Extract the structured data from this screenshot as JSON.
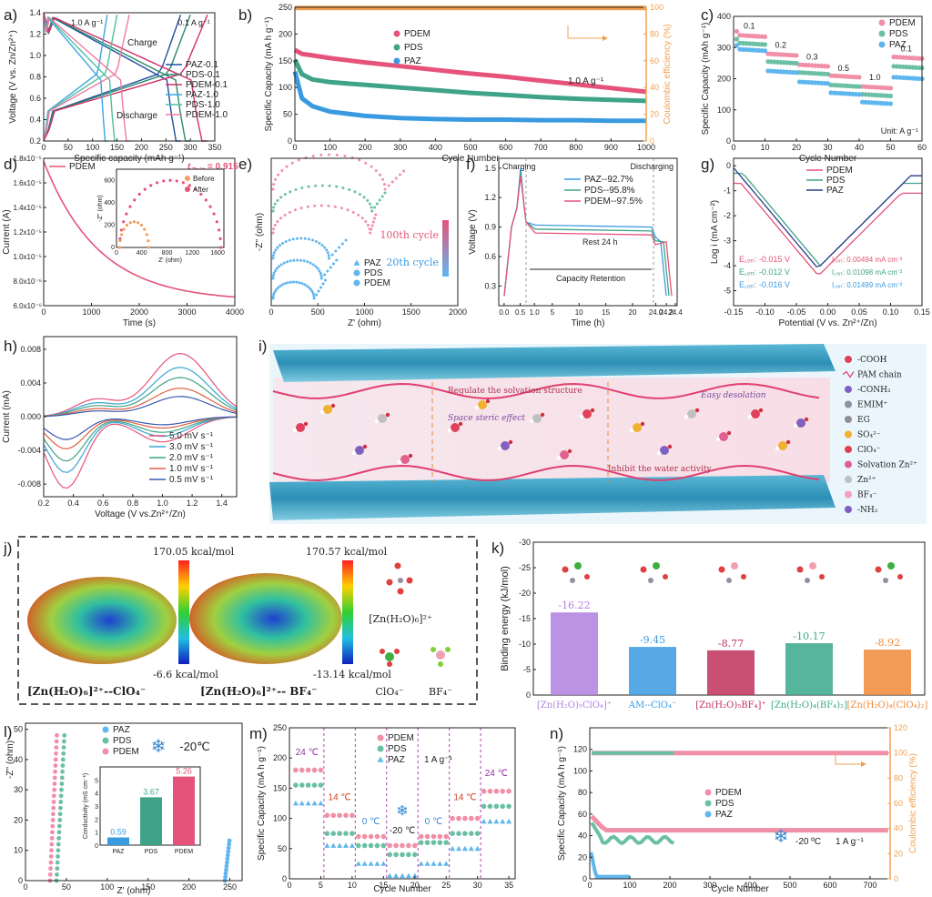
{
  "colors": {
    "PDEM": "#e6537a",
    "PDS": "#3fa387",
    "PAZ": "#3a9ae0",
    "PDEM_light": "#f08fa6",
    "PDS_light": "#6bbfa4",
    "PAZ_light": "#5fb6ef",
    "ce": "#f0a050",
    "box": "#eaf6fb"
  },
  "panels": {
    "a": {
      "label": "a)",
      "xlabel": "Specific capacity (mAh g⁻¹)",
      "ylabel": "Voltage (V vs. Zn/Zn²⁺)",
      "xlim": [
        0,
        350
      ],
      "ylim": [
        0.2,
        1.4
      ],
      "xticks": [
        0,
        50,
        100,
        150,
        200,
        250,
        300,
        350
      ],
      "yticks": [
        0.2,
        0.4,
        0.6,
        0.8,
        1.0,
        1.2,
        1.4
      ],
      "annotations": [
        "1.0 A g⁻¹",
        "0.1 A g⁻¹",
        "Charge",
        "Discharge"
      ],
      "series": [
        {
          "name": "PAZ-0.1",
          "color": "#1f4fa0",
          "cap": 280
        },
        {
          "name": "PDS-0.1",
          "color": "#2a8a6c",
          "cap": 300
        },
        {
          "name": "PDEM-0.1",
          "color": "#d0306a",
          "cap": 335
        },
        {
          "name": "PAZ-1.0",
          "color": "#3aa6e0",
          "cap": 130
        },
        {
          "name": "PDS-1.0",
          "color": "#4fbfa0",
          "cap": 150
        },
        {
          "name": "PDEM-1.0",
          "color": "#f07aa0",
          "cap": 175
        }
      ]
    },
    "b": {
      "label": "b)",
      "xlabel": "Cycle Number",
      "ylabel": "Specific Capacity (mA h g⁻¹)",
      "y2label": "Coulombic efficiency (%)",
      "xlim": [
        0,
        1000
      ],
      "ylim": [
        0,
        250
      ],
      "y2lim": [
        0,
        100
      ],
      "xticks": [
        0,
        100,
        200,
        300,
        400,
        500,
        600,
        700,
        800,
        900,
        1000
      ],
      "yticks": [
        0,
        50,
        100,
        150,
        200,
        250
      ],
      "y2ticks": [
        0,
        20,
        40,
        60,
        80,
        100
      ],
      "annotation": "1.0 A g⁻¹",
      "series": [
        {
          "name": "PDEM",
          "x": [
            0,
            20,
            50,
            100,
            200,
            300,
            400,
            500,
            600,
            700,
            800,
            900,
            1000
          ],
          "y": [
            170,
            163,
            160,
            155,
            147,
            140,
            133,
            126,
            120,
            113,
            106,
            99,
            92
          ]
        },
        {
          "name": "PDS",
          "x": [
            0,
            20,
            50,
            100,
            200,
            300,
            400,
            500,
            600,
            700,
            800,
            900,
            1000
          ],
          "y": [
            152,
            125,
            115,
            110,
            105,
            100,
            95,
            90,
            86,
            82,
            79,
            77,
            75
          ]
        },
        {
          "name": "PAZ",
          "x": [
            0,
            20,
            50,
            100,
            200,
            300,
            400,
            500,
            600,
            700,
            800,
            900,
            1000
          ],
          "y": [
            130,
            80,
            65,
            55,
            47,
            43,
            41,
            40,
            40,
            39,
            39,
            38,
            38
          ]
        }
      ],
      "ce": 99.5
    },
    "c": {
      "label": "c)",
      "xlabel": "Cycle Number",
      "ylabel": "Specific Capacity (mAh g⁻¹)",
      "xlim": [
        0,
        60
      ],
      "ylim": [
        0,
        400
      ],
      "xticks": [
        0,
        10,
        20,
        30,
        40,
        50,
        60
      ],
      "yticks": [
        0,
        100,
        200,
        300,
        400
      ],
      "rates": [
        "0.1",
        "0.2",
        "0.3",
        "0.5",
        "1.0",
        "0.1"
      ],
      "unit": "Unit: A g⁻¹",
      "series": [
        {
          "name": "PDEM",
          "values": [
            340,
            280,
            245,
            210,
            175,
            270
          ]
        },
        {
          "name": "PDS",
          "values": [
            315,
            255,
            220,
            180,
            150,
            240
          ]
        },
        {
          "name": "PAZ",
          "values": [
            295,
            225,
            190,
            155,
            125,
            205
          ]
        }
      ]
    },
    "d": {
      "label": "d)",
      "xlabel": "Time (s)",
      "ylabel": "Current (A)",
      "xlim": [
        0,
        4000
      ],
      "xticks": [
        0,
        1000,
        2000,
        3000,
        4000
      ],
      "ylim": [
        6.0,
        1.8
      ],
      "yticks": [
        "6.0x10⁻⁶",
        "8.0x10⁻⁶",
        "1.0x10⁻⁵",
        "1.2x10⁻⁵",
        "1.4x10⁻⁵",
        "1.6x10⁻⁵",
        "1.8x10⁻⁵"
      ],
      "legend": "PDEM",
      "tzn": "t",
      "tzn_sub": "Zn²⁺",
      "tzn_val": "= 0.915",
      "inset": {
        "xlabel": "Z' (ohm)",
        "ylabel": "-Z'' (ohm)",
        "xticks": [
          0,
          400,
          800,
          1200,
          1600
        ],
        "yticks": [
          0,
          200,
          400,
          600
        ],
        "legend": [
          "Before",
          "After"
        ]
      }
    },
    "e": {
      "label": "e)",
      "xlabel": "Z' (ohm)",
      "ylabel": "-Z'' (ohm)",
      "xticks": [
        0,
        500,
        1000,
        1500,
        2000
      ],
      "legend": [
        "PAZ",
        "PDS",
        "PDEM"
      ],
      "cycle100": "100th cycle",
      "cycle20": "20th cycle"
    },
    "f": {
      "label": "f)",
      "xlabel": "Time (h)",
      "ylabel": "Voltage (V)",
      "xticks": [
        "0.0",
        "0.5",
        "1.0",
        "5",
        "10",
        "15",
        "20",
        "24.0",
        "24.2",
        "24.4"
      ],
      "yticks": [
        0.3,
        0.6,
        0.9,
        1.2,
        1.5
      ],
      "charging": "Charging",
      "discharging": "Discharging",
      "rest": "Rest  24 h",
      "retention": "Capacity Retention",
      "legend": [
        "PAZ--92.7%",
        "PDS--95.8%",
        "PDEM--97.5%"
      ]
    },
    "g": {
      "label": "g)",
      "xlabel": "Potential (V vs. Zn²⁺/Zn)",
      "ylabel": "Log i (mA cm⁻²)",
      "xticks": [
        -0.15,
        -0.1,
        -0.05,
        0.0,
        0.05,
        0.1,
        0.15
      ],
      "yticks": [
        0,
        -1,
        -2,
        -3,
        -4,
        -5
      ],
      "legend": [
        "PDEM",
        "PDS",
        "PAZ"
      ],
      "ecorr": [
        "E꜀ₒᵣᵣ: -0.015 V",
        "E꜀ₒᵣᵣ: -0.012 V",
        "E꜀ₒᵣᵣ: -0.016 V"
      ],
      "icorr": [
        "I꜀ₒᵣᵣ: 0.00494 mA cm⁻²",
        "I꜀ₒᵣᵣ: 0.01098 mA cm⁻²",
        "I꜀ₒᵣᵣ: 0.01499 mA cm⁻²"
      ]
    },
    "h": {
      "label": "h)",
      "xlabel": "Voltage (V vs.Zn²⁺/Zn)",
      "ylabel": "Current (mA)",
      "xticks": [
        0.2,
        0.4,
        0.6,
        0.8,
        1.0,
        1.2,
        1.4
      ],
      "yticks": [
        0.008,
        0.004,
        0.0,
        -0.004,
        -0.008
      ],
      "legend": [
        "5.0 mV s⁻¹",
        "3.0 mV s⁻¹",
        "2.0 mV s⁻¹",
        "1.0 mV s⁻¹",
        "0.5 mV s⁻¹"
      ]
    },
    "i": {
      "label": "i)",
      "texts": [
        "Space steric effect",
        "Regulate the solvation structure",
        "Inhibit the water activity",
        "Easy desolation"
      ],
      "legend": [
        "-COOH",
        "PAM chain",
        "-CONH₂",
        "EMIM⁺",
        "EG",
        "SO₄²⁻",
        "ClO₄⁻",
        "Solvation Zn²⁺",
        "Zn²⁺",
        "BF₄⁻",
        "-NH₂"
      ]
    },
    "j": {
      "label": "j)",
      "max1": "170.05 kcal/mol",
      "min1": "-6.6 kcal/mol",
      "max2": "170.57 kcal/mol",
      "min2": "-13.14 kcal/mol",
      "name1": "[Zn(H₂O)₆]²⁺--ClO₄⁻",
      "name2": "[Zn(H₂O)₆]²⁺-- BF₄⁻",
      "side": [
        "[Zn(H₂O)₆]²⁺",
        "ClO₄⁻",
        "BF₄⁻"
      ]
    },
    "k": {
      "label": "k)",
      "ylabel": "Binding energy (kJ/mol)",
      "ylim": [
        -30,
        0
      ],
      "yticks": [
        -30,
        -25,
        -20,
        -15,
        -10,
        -5,
        0
      ],
      "categories": [
        "[Zn(H₂O)₅ClO₄]⁺",
        "AM--ClO₄⁻",
        "[Zn(H₂O)₅BF₄]⁺",
        "[Zn(H₂O)₄(BF₄)₂]",
        "[Zn(H₂O)₄(ClO₄)₂]"
      ],
      "values": [
        -16.22,
        -9.45,
        -8.77,
        -10.17,
        -8.92
      ],
      "labels": [
        "-16.22",
        "-9.45",
        "-8.77",
        "-10.17",
        "-8.92"
      ],
      "colors": [
        "#b07fe0",
        "#3a9ae0",
        "#c0305a",
        "#3aa88a",
        "#f08a3a"
      ]
    },
    "l": {
      "label": "l)",
      "xlabel": "Z' (ohm)",
      "ylabel": "-Z'' (ohm)",
      "xticks": [
        0,
        50,
        100,
        150,
        200,
        250
      ],
      "yticks": [
        0,
        10,
        20,
        30,
        40,
        50
      ],
      "legend": [
        "PAZ",
        "PDS",
        "PDEM"
      ],
      "temp": "-20℃",
      "inset": {
        "ylabel": "Conductivity (mS cm⁻¹)",
        "yticks": [
          0,
          1,
          2,
          3,
          4,
          5
        ],
        "categories": [
          "PAZ",
          "PDS",
          "PDEM"
        ],
        "values": [
          0.59,
          3.67,
          5.26
        ],
        "labels": [
          "0.59",
          "3.67",
          "5.26"
        ]
      }
    },
    "m": {
      "label": "m)",
      "xlabel": "Cycle Number",
      "ylabel": "Specific Capacity (mA h g⁻¹)",
      "xlim": [
        0,
        36
      ],
      "ylim": [
        0,
        250
      ],
      "xticks": [
        0,
        5,
        10,
        15,
        20,
        25,
        30,
        35
      ],
      "yticks": [
        0,
        50,
        100,
        150,
        200,
        250
      ],
      "legend": [
        "PDEM",
        "PDS",
        "PAZ"
      ],
      "rate": "1 A g⁻¹",
      "temps": [
        "24 ℃",
        "14 ℃",
        "0 ℃",
        "-20 ℃",
        "0 ℃",
        "14 ℃",
        "24 ℃"
      ],
      "series": [
        {
          "name": "PDEM",
          "values": [
            180,
            105,
            70,
            55,
            70,
            100,
            145
          ]
        },
        {
          "name": "PDS",
          "values": [
            155,
            75,
            55,
            40,
            60,
            75,
            120
          ]
        },
        {
          "name": "PAZ",
          "values": [
            125,
            55,
            25,
            5,
            25,
            50,
            95
          ]
        }
      ]
    },
    "n": {
      "label": "n)",
      "xlabel": "Cycle Number",
      "ylabel": "Specific Capacity (mA h g⁻¹)",
      "y2label": "Coulombic efficiency (%)",
      "xlim": [
        0,
        750
      ],
      "ylim": [
        0,
        140
      ],
      "y2lim": [
        0,
        120
      ],
      "xticks": [
        0,
        100,
        200,
        300,
        400,
        500,
        600,
        700
      ],
      "yticks": [
        0,
        20,
        40,
        60,
        80,
        100,
        120
      ],
      "y2ticks": [
        0,
        20,
        40,
        60,
        80,
        100,
        120
      ],
      "legend": [
        "PDEM",
        "PDS",
        "PAZ"
      ],
      "temp": "-20 ºC",
      "rate": "1 A g⁻¹"
    }
  }
}
